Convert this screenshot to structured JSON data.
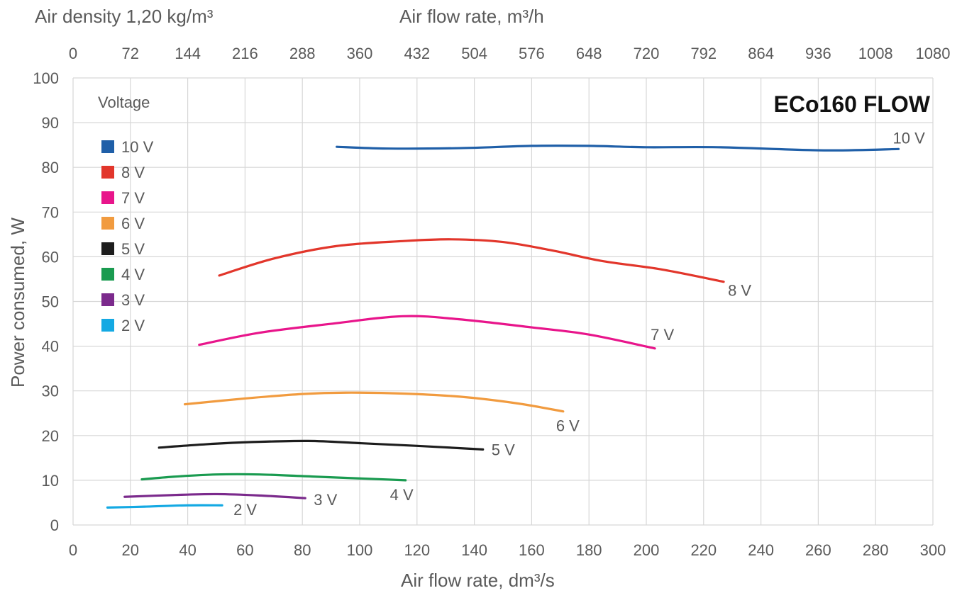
{
  "chart_data": {
    "type": "line",
    "title": "ECo160 FLOW",
    "xlabel": "Air flow rate, dm³/s",
    "ylabel": "Power consumed, W",
    "top_left_label": "Air density 1,20 kg/m³",
    "top_axis_label": "Air flow rate, m³/h",
    "xlim": [
      0,
      300
    ],
    "ylim": [
      0,
      100
    ],
    "x_ticks": [
      0,
      20,
      40,
      60,
      80,
      100,
      120,
      140,
      160,
      180,
      200,
      220,
      240,
      260,
      280,
      300
    ],
    "y_ticks": [
      0,
      10,
      20,
      30,
      40,
      50,
      60,
      70,
      80,
      90,
      100
    ],
    "top_ticks": [
      0,
      72,
      144,
      216,
      288,
      360,
      432,
      504,
      576,
      648,
      720,
      792,
      864,
      936,
      1008,
      1080
    ],
    "top_axis_factor": 3.6,
    "grid": true,
    "legend": {
      "title": "Voltage",
      "placement": "top-left",
      "entries": [
        "10 V",
        "8 V",
        "7 V",
        "6 V",
        "5 V",
        "4 V",
        "3 V",
        "2 V"
      ]
    },
    "series": [
      {
        "name": "10 V",
        "color": "#1f5fa8",
        "label": "10 V",
        "points": [
          [
            92,
            84.6
          ],
          [
            110,
            84.2
          ],
          [
            135,
            84.3
          ],
          [
            160,
            84.8
          ],
          [
            180,
            84.8
          ],
          [
            200,
            84.5
          ],
          [
            225,
            84.5
          ],
          [
            262,
            83.8
          ],
          [
            288,
            84.1
          ]
        ]
      },
      {
        "name": "8 V",
        "color": "#e2362b",
        "label": "8 V",
        "points": [
          [
            51,
            55.8
          ],
          [
            70,
            59.6
          ],
          [
            92,
            62.4
          ],
          [
            115,
            63.5
          ],
          [
            132,
            63.9
          ],
          [
            150,
            63.3
          ],
          [
            168,
            61.3
          ],
          [
            185,
            59.0
          ],
          [
            205,
            57.2
          ],
          [
            227,
            54.4
          ]
        ]
      },
      {
        "name": "7 V",
        "color": "#e8158b",
        "label": "7 V",
        "points": [
          [
            44,
            40.3
          ],
          [
            65,
            43.0
          ],
          [
            90,
            45.0
          ],
          [
            115,
            46.7
          ],
          [
            135,
            46.0
          ],
          [
            160,
            44.2
          ],
          [
            180,
            42.6
          ],
          [
            203,
            39.5
          ]
        ]
      },
      {
        "name": "6 V",
        "color": "#f19b3f",
        "label": "6 V",
        "points": [
          [
            39,
            27.0
          ],
          [
            60,
            28.3
          ],
          [
            80,
            29.3
          ],
          [
            95,
            29.6
          ],
          [
            115,
            29.4
          ],
          [
            135,
            28.7
          ],
          [
            155,
            27.2
          ],
          [
            171,
            25.4
          ]
        ]
      },
      {
        "name": "5 V",
        "color": "#1d1d1d",
        "label": "5 V",
        "points": [
          [
            30,
            17.3
          ],
          [
            45,
            18.0
          ],
          [
            60,
            18.5
          ],
          [
            82,
            18.8
          ],
          [
            100,
            18.3
          ],
          [
            120,
            17.7
          ],
          [
            143,
            16.9
          ]
        ]
      },
      {
        "name": "4 V",
        "color": "#1a9b50",
        "label": "4 V",
        "points": [
          [
            24,
            10.2
          ],
          [
            35,
            10.8
          ],
          [
            50,
            11.3
          ],
          [
            65,
            11.3
          ],
          [
            85,
            10.8
          ],
          [
            116,
            10.0
          ]
        ]
      },
      {
        "name": "3 V",
        "color": "#7b2a8c",
        "label": "3 V",
        "points": [
          [
            18,
            6.3
          ],
          [
            35,
            6.7
          ],
          [
            50,
            6.9
          ],
          [
            65,
            6.6
          ],
          [
            81,
            6.0
          ]
        ]
      },
      {
        "name": "2 V",
        "color": "#14a9e3",
        "label": "2 V",
        "points": [
          [
            12,
            3.9
          ],
          [
            25,
            4.1
          ],
          [
            40,
            4.4
          ],
          [
            52,
            4.4
          ]
        ]
      }
    ]
  }
}
